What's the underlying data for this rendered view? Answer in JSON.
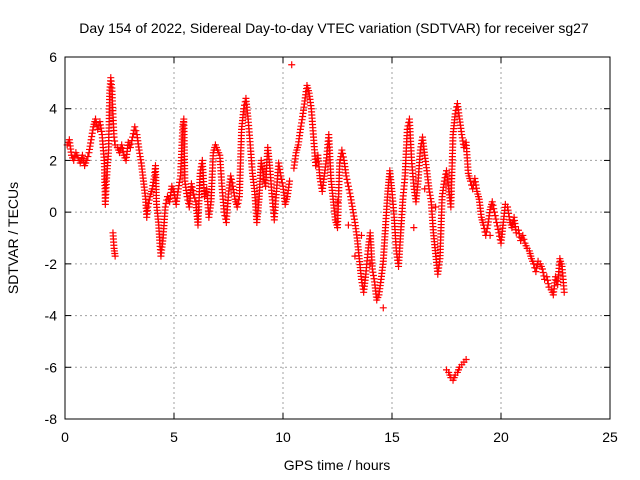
{
  "chart_data": {
    "type": "scatter",
    "title": "Day 154 of 2022, Sidereal Day-to-day VTEC variation (SDTVAR) for receiver sg27",
    "xlabel": "GPS time / hours",
    "ylabel": "SDTVAR / TECUs",
    "xlim": [
      0,
      25
    ],
    "ylim": [
      -8,
      6
    ],
    "xticks": [
      "0",
      "5",
      "10",
      "15",
      "20",
      "25"
    ],
    "yticks": [
      "-8",
      "-6",
      "-4",
      "-2",
      "0",
      "2",
      "4",
      "6"
    ],
    "grid": true,
    "marker": "+",
    "color": "#ff0000",
    "series": [
      {
        "name": "SDTVAR",
        "points": [
          [
            0.1,
            2.6
          ],
          [
            0.2,
            2.8
          ],
          [
            0.3,
            2.2
          ],
          [
            0.4,
            2.0
          ],
          [
            0.5,
            2.3
          ],
          [
            0.6,
            2.1
          ],
          [
            0.7,
            1.9
          ],
          [
            0.8,
            2.2
          ],
          [
            0.9,
            1.8
          ],
          [
            1.0,
            2.0
          ],
          [
            1.1,
            2.3
          ],
          [
            1.2,
            2.8
          ],
          [
            1.3,
            3.3
          ],
          [
            1.4,
            3.6
          ],
          [
            1.5,
            3.2
          ],
          [
            1.6,
            3.5
          ],
          [
            1.7,
            3.0
          ],
          [
            1.8,
            2.0
          ],
          [
            1.85,
            0.3
          ],
          [
            1.9,
            1.2
          ],
          [
            2.0,
            2.4
          ],
          [
            2.05,
            4.6
          ],
          [
            2.1,
            5.2
          ],
          [
            2.15,
            4.8
          ],
          [
            2.2,
            3.8
          ],
          [
            2.25,
            2.9
          ],
          [
            2.3,
            2.6
          ],
          [
            2.2,
            -0.8
          ],
          [
            2.25,
            -1.4
          ],
          [
            2.3,
            -1.7
          ],
          [
            2.4,
            2.5
          ],
          [
            2.5,
            2.3
          ],
          [
            2.6,
            2.6
          ],
          [
            2.7,
            2.2
          ],
          [
            2.8,
            2.0
          ],
          [
            2.9,
            2.7
          ],
          [
            3.0,
            2.5
          ],
          [
            3.1,
            2.9
          ],
          [
            3.2,
            3.3
          ],
          [
            3.3,
            3.0
          ],
          [
            3.4,
            2.4
          ],
          [
            3.5,
            1.9
          ],
          [
            3.6,
            1.2
          ],
          [
            3.7,
            0.5
          ],
          [
            3.75,
            -0.2
          ],
          [
            3.8,
            0.2
          ],
          [
            3.9,
            0.6
          ],
          [
            4.0,
            0.9
          ],
          [
            4.1,
            1.4
          ],
          [
            4.15,
            1.8
          ],
          [
            4.2,
            0.3
          ],
          [
            4.3,
            -0.5
          ],
          [
            4.35,
            -1.2
          ],
          [
            4.4,
            -1.7
          ],
          [
            4.5,
            -1.0
          ],
          [
            4.6,
            0.2
          ],
          [
            4.7,
            0.6
          ],
          [
            4.8,
            0.4
          ],
          [
            4.9,
            1.0
          ],
          [
            5.0,
            0.8
          ],
          [
            5.1,
            0.3
          ],
          [
            5.2,
            0.9
          ],
          [
            5.3,
            1.4
          ],
          [
            5.4,
            3.3
          ],
          [
            5.45,
            3.6
          ],
          [
            5.5,
            1.2
          ],
          [
            5.6,
            0.6
          ],
          [
            5.7,
            0.2
          ],
          [
            5.8,
            1.1
          ],
          [
            5.9,
            0.7
          ],
          [
            6.0,
            0.4
          ],
          [
            6.1,
            -0.5
          ],
          [
            6.2,
            1.5
          ],
          [
            6.3,
            2.0
          ],
          [
            6.4,
            0.6
          ],
          [
            6.5,
            0.9
          ],
          [
            6.6,
            -0.2
          ],
          [
            6.7,
            0.4
          ],
          [
            6.8,
            2.3
          ],
          [
            6.9,
            2.6
          ],
          [
            7.0,
            2.4
          ],
          [
            7.1,
            2.2
          ],
          [
            7.2,
            1.0
          ],
          [
            7.3,
            0.0
          ],
          [
            7.4,
            -0.4
          ],
          [
            7.5,
            0.7
          ],
          [
            7.6,
            1.4
          ],
          [
            7.7,
            1.0
          ],
          [
            7.8,
            0.5
          ],
          [
            7.9,
            0.2
          ],
          [
            8.0,
            0.6
          ],
          [
            8.1,
            3.2
          ],
          [
            8.2,
            4.0
          ],
          [
            8.3,
            4.4
          ],
          [
            8.4,
            3.6
          ],
          [
            8.5,
            2.6
          ],
          [
            8.6,
            1.5
          ],
          [
            8.7,
            0.8
          ],
          [
            8.8,
            -0.4
          ],
          [
            8.9,
            0.5
          ],
          [
            9.0,
            2.0
          ],
          [
            9.1,
            1.4
          ],
          [
            9.2,
            1.0
          ],
          [
            9.3,
            2.5
          ],
          [
            9.4,
            1.7
          ],
          [
            9.5,
            0.6
          ],
          [
            9.6,
            -0.3
          ],
          [
            9.7,
            0.8
          ],
          [
            9.8,
            1.9
          ],
          [
            9.9,
            1.4
          ],
          [
            10.0,
            1.0
          ],
          [
            10.1,
            0.3
          ],
          [
            10.2,
            0.6
          ],
          [
            10.3,
            1.2
          ],
          [
            10.4,
            5.7
          ],
          [
            10.5,
            1.7
          ],
          [
            10.6,
            2.3
          ],
          [
            10.7,
            2.6
          ],
          [
            10.8,
            3.2
          ],
          [
            10.9,
            3.7
          ],
          [
            11.0,
            4.3
          ],
          [
            11.1,
            4.9
          ],
          [
            11.2,
            4.6
          ],
          [
            11.3,
            4.0
          ],
          [
            11.5,
            1.8
          ],
          [
            11.6,
            2.2
          ],
          [
            11.7,
            1.3
          ],
          [
            11.8,
            0.8
          ],
          [
            12.0,
            2.1
          ],
          [
            12.1,
            3.0
          ],
          [
            12.2,
            1.3
          ],
          [
            12.3,
            0.5
          ],
          [
            12.4,
            -0.3
          ],
          [
            12.5,
            -0.6
          ],
          [
            12.6,
            1.9
          ],
          [
            12.7,
            2.4
          ],
          [
            12.8,
            2.0
          ],
          [
            12.9,
            1.4
          ],
          [
            13.0,
            1.0
          ],
          [
            13.1,
            0.6
          ],
          [
            13.2,
            0.1
          ],
          [
            13.3,
            -0.4
          ],
          [
            13.4,
            -1.0
          ],
          [
            13.5,
            -1.8
          ],
          [
            13.6,
            -2.6
          ],
          [
            13.7,
            -3.1
          ],
          [
            13.8,
            -2.4
          ],
          [
            13.9,
            -1.5
          ],
          [
            14.0,
            -0.8
          ],
          [
            14.1,
            -2.2
          ],
          [
            14.2,
            -2.7
          ],
          [
            14.3,
            -3.4
          ],
          [
            14.4,
            -3.2
          ],
          [
            14.5,
            -2.6
          ],
          [
            14.6,
            -1.9
          ],
          [
            14.7,
            -0.6
          ],
          [
            14.8,
            0.7
          ],
          [
            14.9,
            1.6
          ],
          [
            15.0,
            0.8
          ],
          [
            15.1,
            -0.2
          ],
          [
            15.2,
            -1.5
          ],
          [
            15.3,
            -2.1
          ],
          [
            15.4,
            -0.8
          ],
          [
            15.5,
            0.5
          ],
          [
            15.6,
            1.4
          ],
          [
            15.7,
            3.2
          ],
          [
            15.8,
            3.6
          ],
          [
            15.9,
            2.0
          ],
          [
            16.0,
            1.0
          ],
          [
            16.1,
            0.4
          ],
          [
            16.2,
            1.2
          ],
          [
            16.3,
            2.4
          ],
          [
            16.4,
            2.9
          ],
          [
            16.5,
            2.2
          ],
          [
            16.6,
            1.6
          ],
          [
            16.7,
            0.9
          ],
          [
            16.8,
            0.4
          ],
          [
            16.9,
            -0.8
          ],
          [
            17.0,
            -1.6
          ],
          [
            17.1,
            -2.4
          ],
          [
            17.2,
            -1.8
          ],
          [
            17.3,
            0.6
          ],
          [
            17.4,
            1.2
          ],
          [
            17.5,
            1.6
          ],
          [
            17.6,
            0.9
          ],
          [
            17.7,
            0.2
          ],
          [
            17.8,
            3.0
          ],
          [
            17.9,
            3.8
          ],
          [
            18.0,
            4.2
          ],
          [
            18.1,
            3.6
          ],
          [
            18.2,
            3.0
          ],
          [
            18.3,
            2.5
          ],
          [
            18.4,
            2.7
          ],
          [
            18.5,
            1.5
          ],
          [
            18.6,
            1.2
          ],
          [
            18.7,
            0.9
          ],
          [
            18.8,
            1.3
          ],
          [
            18.9,
            0.8
          ],
          [
            19.0,
            0.5
          ],
          [
            19.1,
            -0.2
          ],
          [
            19.2,
            -0.5
          ],
          [
            19.3,
            -0.9
          ],
          [
            19.4,
            -0.5
          ],
          [
            19.5,
            0.1
          ],
          [
            19.6,
            0.4
          ],
          [
            19.7,
            0.0
          ],
          [
            19.8,
            -0.4
          ],
          [
            19.9,
            -0.8
          ],
          [
            20.0,
            -1.2
          ],
          [
            20.2,
            0.3
          ],
          [
            20.3,
            0.2
          ],
          [
            20.4,
            -0.3
          ],
          [
            20.5,
            -0.6
          ],
          [
            20.6,
            -0.2
          ],
          [
            20.7,
            -0.8
          ],
          [
            20.8,
            -0.7
          ],
          [
            20.9,
            -1.1
          ],
          [
            21.0,
            -0.9
          ],
          [
            21.1,
            -1.2
          ],
          [
            21.2,
            -1.4
          ],
          [
            21.3,
            -1.5
          ],
          [
            21.4,
            -1.8
          ],
          [
            21.5,
            -2.0
          ],
          [
            21.6,
            -2.3
          ],
          [
            21.7,
            -1.9
          ],
          [
            21.8,
            -2.0
          ],
          [
            21.9,
            -2.2
          ],
          [
            22.0,
            -2.6
          ],
          [
            22.1,
            -2.5
          ],
          [
            22.2,
            -2.9
          ],
          [
            22.3,
            -3.0
          ],
          [
            22.4,
            -3.2
          ],
          [
            22.5,
            -2.5
          ],
          [
            22.6,
            -2.8
          ],
          [
            22.7,
            -1.8
          ],
          [
            22.8,
            -2.1
          ],
          [
            22.9,
            -3.1
          ],
          [
            17.5,
            -6.1
          ],
          [
            17.6,
            -6.2
          ],
          [
            17.7,
            -6.4
          ],
          [
            17.8,
            -6.5
          ],
          [
            17.9,
            -6.3
          ],
          [
            18.0,
            -6.2
          ],
          [
            18.1,
            -6.0
          ],
          [
            18.2,
            -5.9
          ],
          [
            18.3,
            -5.8
          ],
          [
            18.4,
            -5.7
          ],
          [
            12.5,
            0.4
          ],
          [
            13.0,
            -0.5
          ],
          [
            13.3,
            -1.7
          ],
          [
            13.6,
            -0.9
          ],
          [
            14.0,
            -2.0
          ],
          [
            14.6,
            -3.7
          ],
          [
            16.0,
            -0.6
          ],
          [
            16.5,
            0.9
          ],
          [
            17.0,
            0.2
          ],
          [
            19.5,
            -0.9
          ]
        ]
      }
    ]
  }
}
